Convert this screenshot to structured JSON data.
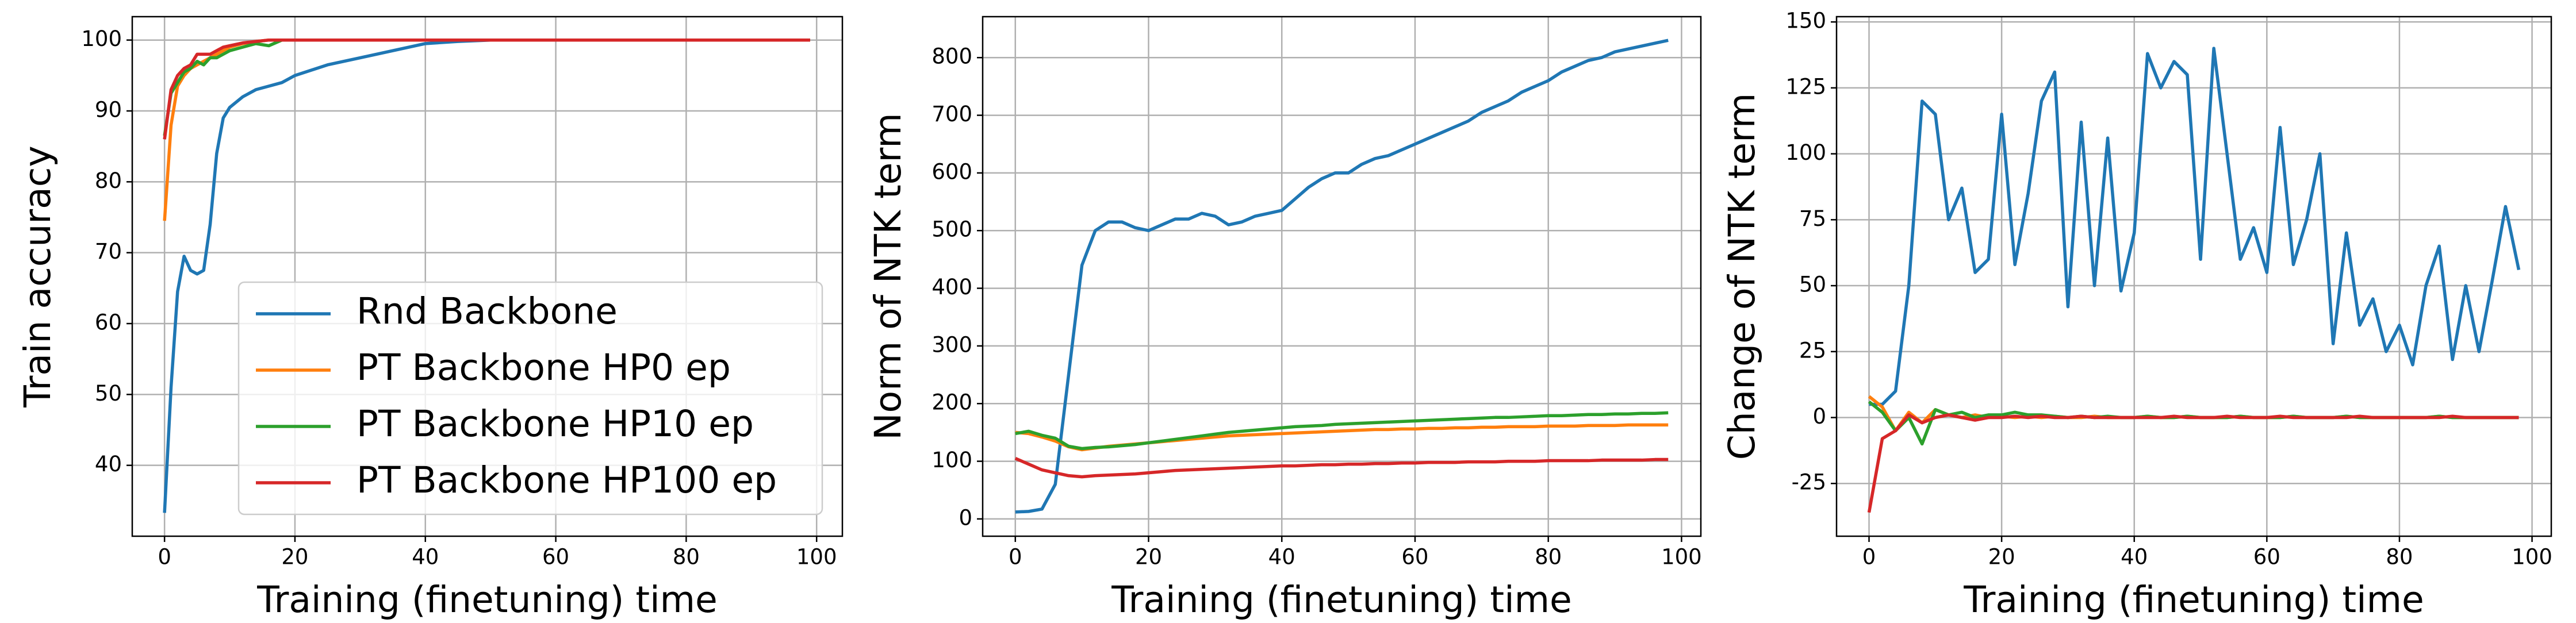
{
  "chart_data": [
    {
      "type": "line",
      "xlabel": "Training (finetuning) time",
      "ylabel": "Train accuracy",
      "x": [
        0,
        1,
        2,
        3,
        4,
        5,
        6,
        7,
        8,
        9,
        10,
        12,
        14,
        16,
        18,
        20,
        25,
        30,
        35,
        40,
        45,
        50,
        60,
        70,
        80,
        90,
        99
      ],
      "series": [
        {
          "name": "Rnd Backbone",
          "color": "#1f77b4",
          "values": [
            33.3,
            51,
            64.5,
            69.5,
            67.5,
            67,
            67.5,
            74,
            84,
            89,
            90.5,
            92,
            93,
            93.5,
            94,
            95,
            96.5,
            97.5,
            98.5,
            99.5,
            99.8,
            100,
            100,
            100,
            100,
            100,
            100
          ]
        },
        {
          "name": "PT Backbone HP0 ep",
          "color": "#ff7f0e",
          "values": [
            74.5,
            88,
            93.5,
            95,
            96,
            96.5,
            97,
            97.5,
            98,
            98.5,
            99,
            99.5,
            99.8,
            100,
            100,
            100,
            100,
            100,
            100,
            100,
            100,
            100,
            100,
            100,
            100,
            100,
            100
          ]
        },
        {
          "name": "PT Backbone HP10 ep",
          "color": "#2ca02c",
          "values": [
            86.5,
            92.5,
            94,
            95.5,
            96,
            97,
            96.5,
            97.5,
            97.5,
            98,
            98.5,
            99,
            99.5,
            99.2,
            100,
            100,
            100,
            100,
            100,
            100,
            100,
            100,
            100,
            100,
            100,
            100,
            100
          ]
        },
        {
          "name": "PT Backbone HP100 ep",
          "color": "#d62728",
          "values": [
            86,
            93,
            95,
            96,
            96.5,
            98,
            98,
            98,
            98.5,
            99,
            99.2,
            99.6,
            99.8,
            100,
            100,
            100,
            100,
            100,
            100,
            100,
            100,
            100,
            100,
            100,
            100,
            100,
            100
          ]
        }
      ],
      "xlim": [
        -4.95,
        103.95
      ],
      "xticks": [
        0,
        20,
        40,
        60,
        80,
        100
      ],
      "ylim": [
        30,
        103.3
      ],
      "yticks": [
        40,
        50,
        60,
        70,
        80,
        90,
        100
      ],
      "grid": true,
      "legend": "lower right"
    },
    {
      "type": "line",
      "xlabel": "Training (finetuning) time",
      "ylabel": "Norm of NTK term",
      "x": [
        0,
        2,
        4,
        6,
        8,
        10,
        12,
        14,
        16,
        18,
        20,
        22,
        24,
        26,
        28,
        30,
        32,
        34,
        36,
        38,
        40,
        42,
        44,
        46,
        48,
        50,
        52,
        54,
        56,
        58,
        60,
        62,
        64,
        66,
        68,
        70,
        72,
        74,
        76,
        78,
        80,
        82,
        84,
        86,
        88,
        90,
        92,
        94,
        96,
        98
      ],
      "series": [
        {
          "color": "#1f77b4",
          "values": [
            12,
            13,
            17,
            60,
            250,
            440,
            500,
            515,
            515,
            505,
            500,
            510,
            520,
            520,
            530,
            525,
            510,
            515,
            525,
            530,
            535,
            555,
            575,
            590,
            600,
            600,
            615,
            625,
            630,
            640,
            650,
            660,
            670,
            680,
            690,
            705,
            715,
            725,
            740,
            750,
            760,
            775,
            785,
            795,
            800,
            810,
            815,
            820,
            825,
            830
          ]
        },
        {
          "color": "#ff7f0e",
          "values": [
            150,
            148,
            142,
            135,
            125,
            120,
            123,
            126,
            128,
            130,
            132,
            134,
            136,
            138,
            140,
            142,
            144,
            145,
            146,
            147,
            148,
            149,
            150,
            151,
            152,
            153,
            154,
            155,
            155,
            156,
            156,
            157,
            157,
            158,
            158,
            159,
            159,
            160,
            160,
            160,
            161,
            161,
            161,
            162,
            162,
            162,
            163,
            163,
            163,
            163
          ]
        },
        {
          "color": "#2ca02c",
          "values": [
            148,
            152,
            145,
            140,
            126,
            122,
            124,
            125,
            127,
            129,
            132,
            135,
            138,
            141,
            144,
            147,
            150,
            152,
            154,
            156,
            158,
            160,
            161,
            162,
            164,
            165,
            166,
            167,
            168,
            169,
            170,
            171,
            172,
            173,
            174,
            175,
            176,
            176,
            177,
            178,
            179,
            179,
            180,
            181,
            181,
            182,
            182,
            183,
            183,
            184
          ]
        },
        {
          "color": "#d62728",
          "values": [
            105,
            95,
            85,
            80,
            75,
            73,
            75,
            76,
            77,
            78,
            80,
            82,
            84,
            85,
            86,
            87,
            88,
            89,
            90,
            91,
            92,
            92,
            93,
            94,
            94,
            95,
            95,
            96,
            96,
            97,
            97,
            98,
            98,
            98,
            99,
            99,
            99,
            100,
            100,
            100,
            101,
            101,
            101,
            101,
            102,
            102,
            102,
            102,
            103,
            103
          ]
        }
      ],
      "xlim": [
        -4.9,
        102.9
      ],
      "xticks": [
        0,
        20,
        40,
        60,
        80,
        100
      ],
      "ylim": [
        -30,
        871
      ],
      "yticks": [
        0,
        100,
        200,
        300,
        400,
        500,
        600,
        700,
        800
      ],
      "grid": true
    },
    {
      "type": "line",
      "xlabel": "Training (finetuning) time",
      "ylabel": "Change of NTK term",
      "x": [
        0,
        2,
        4,
        6,
        8,
        10,
        12,
        14,
        16,
        18,
        20,
        22,
        24,
        26,
        28,
        30,
        32,
        34,
        36,
        38,
        40,
        42,
        44,
        46,
        48,
        50,
        52,
        54,
        56,
        58,
        60,
        62,
        64,
        66,
        68,
        70,
        72,
        74,
        76,
        78,
        80,
        82,
        84,
        86,
        88,
        90,
        92,
        94,
        96,
        98
      ],
      "series": [
        {
          "color": "#1f77b4",
          "values": [
            5,
            5,
            10,
            50,
            120,
            115,
            75,
            87,
            55,
            60,
            115,
            58,
            85,
            120,
            131,
            42,
            112,
            50,
            106,
            48,
            70,
            138,
            125,
            135,
            130,
            60,
            140,
            100,
            60,
            72,
            55,
            110,
            58,
            75,
            100,
            28,
            70,
            35,
            45,
            25,
            35,
            20,
            50,
            65,
            22,
            50,
            25,
            52,
            80,
            56
          ]
        },
        {
          "color": "#ff7f0e",
          "values": [
            8,
            4,
            -5,
            2,
            -2,
            3,
            1,
            0,
            1,
            0,
            0.5,
            0,
            0.5,
            0,
            0.5,
            0,
            0,
            0.5,
            0,
            0,
            0,
            0.5,
            0,
            0,
            0.5,
            0,
            0,
            0,
            0.5,
            0,
            0,
            0,
            0.5,
            0,
            0,
            0,
            0.5,
            0,
            0,
            0,
            0,
            0,
            0,
            0.5,
            0,
            0,
            0,
            0,
            0,
            0
          ]
        },
        {
          "color": "#2ca02c",
          "values": [
            6,
            2,
            -5,
            0,
            -10,
            3,
            1,
            2,
            0,
            1,
            1,
            2,
            1,
            1,
            0.5,
            0,
            0.5,
            0,
            0.5,
            0,
            0,
            0.5,
            0,
            0,
            0.5,
            0,
            0,
            0,
            0.5,
            0,
            0,
            0,
            0.5,
            0,
            0,
            0,
            0.5,
            0,
            0,
            0,
            0,
            0,
            0,
            0.5,
            0,
            0,
            0,
            0,
            0,
            0
          ]
        },
        {
          "color": "#d62728",
          "values": [
            -36,
            -8,
            -5,
            1,
            -2,
            0,
            1,
            0,
            -1,
            0,
            0,
            0.5,
            0,
            0.5,
            0,
            0,
            0.5,
            0,
            0,
            0,
            0,
            0,
            0,
            0.5,
            0,
            0,
            0,
            0.5,
            0,
            0,
            0,
            0.5,
            0,
            0,
            0,
            0,
            0,
            0.5,
            0,
            0,
            0,
            0,
            0,
            0,
            0.5,
            0,
            0,
            0,
            0,
            0
          ]
        }
      ],
      "xlim": [
        -4.9,
        102.9
      ],
      "xticks": [
        0,
        20,
        40,
        60,
        80,
        100
      ],
      "ylim": [
        -45,
        152
      ],
      "yticks": [
        -25,
        0,
        25,
        50,
        75,
        100,
        125,
        150
      ],
      "grid": true
    }
  ]
}
